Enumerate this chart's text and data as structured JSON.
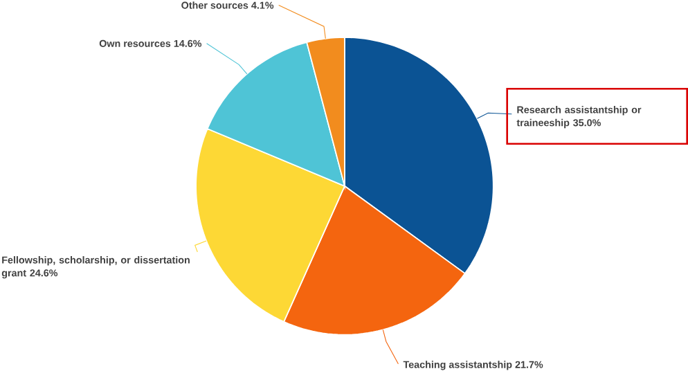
{
  "chart_data": {
    "type": "pie",
    "categories": [
      "Research assistantship or traineeship",
      "Teaching assistantship",
      "Fellowship, scholarship, or dissertation grant",
      "Own resources",
      "Other sources"
    ],
    "values": [
      35.0,
      21.7,
      24.6,
      14.6,
      4.1
    ],
    "value_labels": [
      "35.0%",
      "21.7%",
      "24.6%",
      "14.6%",
      "4.1%"
    ],
    "colors": [
      "#0b5394",
      "#f4650f",
      "#fdd835",
      "#4fc4d6",
      "#f28c1e"
    ]
  }
}
